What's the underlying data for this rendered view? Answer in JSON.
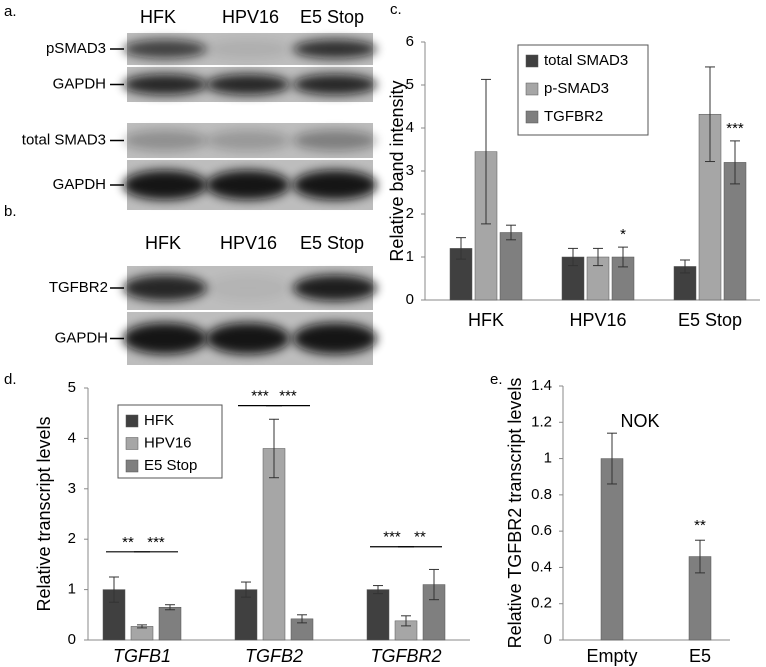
{
  "panels": {
    "a": {
      "label": "a.",
      "headers": [
        "HFK",
        "HPV16",
        "E5 Stop"
      ],
      "rows": [
        "pSMAD3",
        "GAPDH",
        "total SMAD3",
        "GAPDH"
      ]
    },
    "b": {
      "label": "b.",
      "headers": [
        "HFK",
        "HPV16",
        "E5 Stop"
      ],
      "rows": [
        "TGFBR2",
        "GAPDH"
      ]
    }
  },
  "chart_data": [
    {
      "type": "bar",
      "panel_label": "c.",
      "y_label": "Relative band intensity",
      "categories": [
        "HFK",
        "HPV16",
        "E5 Stop"
      ],
      "series": [
        {
          "name": "total SMAD3",
          "color": "#404040",
          "values": [
            1.2,
            1.0,
            0.78
          ],
          "errors": [
            0.25,
            0.2,
            0.15
          ]
        },
        {
          "name": "p-SMAD3",
          "color": "#a6a6a6",
          "values": [
            3.45,
            1.0,
            4.32
          ],
          "errors": [
            1.68,
            0.2,
            1.1
          ]
        },
        {
          "name": "TGFBR2",
          "color": "#7f7f7f",
          "values": [
            1.57,
            1.0,
            3.2
          ],
          "errors": [
            0.17,
            0.23,
            0.5
          ]
        }
      ],
      "ylim": [
        0,
        6
      ],
      "yticks": [
        0,
        1,
        2,
        3,
        4,
        5,
        6
      ],
      "annotations": [
        "*",
        "***"
      ],
      "legend": "top-right"
    },
    {
      "type": "bar",
      "panel_label": "d.",
      "y_label": "Relative transcript levels",
      "categories": [
        "TGFB1",
        "TGFB2",
        "TGFBR2"
      ],
      "series": [
        {
          "name": "HFK",
          "color": "#404040",
          "values": [
            1.0,
            1.0,
            1.0
          ],
          "errors": [
            0.25,
            0.15,
            0.08
          ]
        },
        {
          "name": "HPV16",
          "color": "#a6a6a6",
          "values": [
            0.27,
            3.8,
            0.38
          ],
          "errors": [
            0.03,
            0.58,
            0.1
          ]
        },
        {
          "name": "E5 Stop",
          "color": "#7f7f7f",
          "values": [
            0.65,
            0.42,
            1.1
          ],
          "errors": [
            0.05,
            0.08,
            0.3
          ]
        }
      ],
      "ylim": [
        0,
        5
      ],
      "yticks": [
        0,
        1,
        2,
        3,
        4,
        5
      ],
      "annotations": [
        "**",
        "***",
        "***",
        "***",
        "***",
        "**"
      ],
      "legend": "top-left"
    },
    {
      "type": "bar",
      "panel_label": "e.",
      "title": "NOK",
      "y_label": "Relative TGFBR2 transcript levels",
      "categories": [
        "Empty",
        "E5"
      ],
      "series": [
        {
          "color": "#7f7f7f",
          "values": [
            1.0,
            0.46
          ],
          "errors": [
            0.14,
            0.09
          ]
        }
      ],
      "ylim": [
        0,
        1.4
      ],
      "yticks": [
        0,
        0.2,
        0.4,
        0.6,
        0.8,
        1,
        1.2,
        1.4
      ],
      "annotations": [
        "**"
      ]
    }
  ]
}
